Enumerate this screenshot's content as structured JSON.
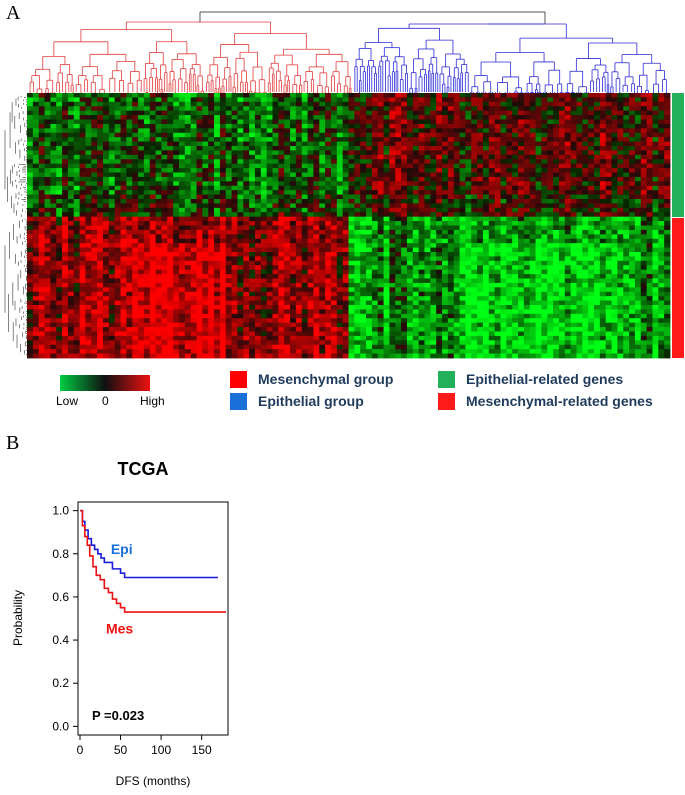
{
  "panel_a": {
    "label": "A",
    "color_scale": {
      "low_label": "Low",
      "mid_label": "0",
      "high_label": "High",
      "low_color": "#00cc44",
      "mid_color": "#101010",
      "high_color": "#ee1111"
    },
    "legend": [
      {
        "label": "Mesenchymal group",
        "color": "#ff0000"
      },
      {
        "label": "Epithelial group",
        "color": "#1a6fd8"
      },
      {
        "label": "Epithelial-related genes",
        "color": "#22b05a"
      },
      {
        "label": "Mesenchymal-related genes",
        "color": "#ff1a1a"
      }
    ],
    "dendrogram_colors": {
      "left_cluster": "#e23b3b",
      "right_cluster": "#2a2ad6",
      "root": "#555555"
    }
  },
  "panel_b": {
    "label": "B",
    "title": "TCGA",
    "p_value_text": "P  =0.023"
  },
  "chart_data": {
    "type": "line",
    "title": "TCGA",
    "xlabel": "DFS (months)",
    "ylabel": "Probability",
    "xlim": [
      0,
      180
    ],
    "ylim": [
      0,
      1.0
    ],
    "xticks": [
      0,
      50,
      100,
      150
    ],
    "yticks": [
      0.0,
      0.2,
      0.4,
      0.6,
      0.8,
      1.0
    ],
    "series": [
      {
        "name": "Epi",
        "color": "#1a1adc",
        "label_color": "#1a6fd8",
        "x": [
          0,
          3,
          6,
          10,
          14,
          18,
          22,
          26,
          30,
          35,
          40,
          45,
          50,
          55,
          60,
          170
        ],
        "y": [
          1.0,
          0.95,
          0.91,
          0.87,
          0.84,
          0.82,
          0.8,
          0.78,
          0.76,
          0.76,
          0.73,
          0.73,
          0.71,
          0.69,
          0.69,
          0.69
        ]
      },
      {
        "name": "Mes",
        "color": "#ee1111",
        "label_color": "#ee1111",
        "x": [
          0,
          3,
          6,
          9,
          12,
          16,
          20,
          25,
          30,
          35,
          40,
          45,
          50,
          55,
          60,
          180
        ],
        "y": [
          1.0,
          0.93,
          0.88,
          0.84,
          0.79,
          0.74,
          0.7,
          0.68,
          0.64,
          0.62,
          0.59,
          0.57,
          0.55,
          0.53,
          0.53,
          0.53
        ]
      }
    ],
    "annotations": [
      "P  =0.023"
    ]
  }
}
